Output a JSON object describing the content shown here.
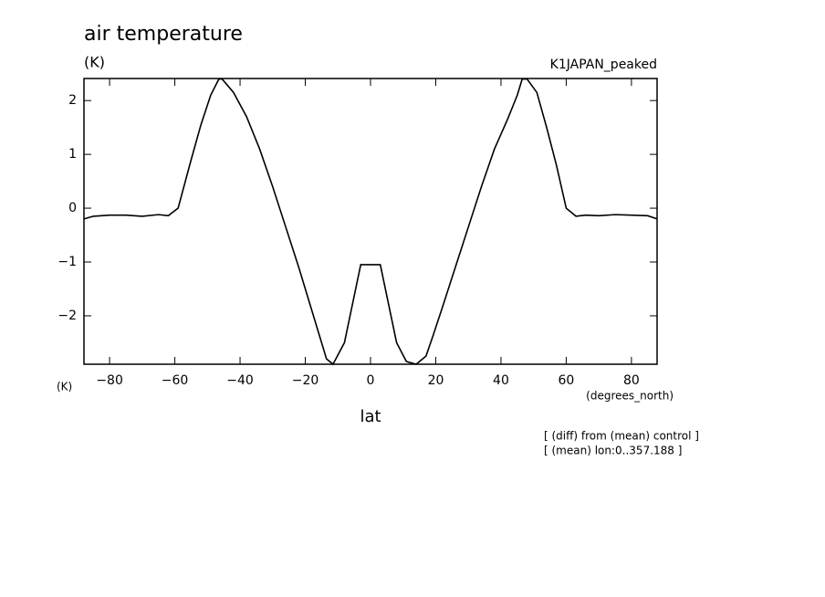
{
  "chart_data": {
    "type": "line",
    "title": "air temperature",
    "units_top": "(K)",
    "subtitle": "K1JAPAN_peaked",
    "ylabel": "(K)",
    "xunits": "(degrees_north)",
    "xlabel": "lat",
    "notes": [
      "[ (diff) from (mean) control ]",
      "[ (mean) lon:0..357.188 ]"
    ],
    "x": [
      -87.9,
      -85,
      -80,
      -75,
      -70,
      -65,
      -62,
      -59,
      -55,
      -52,
      -49,
      -46.5,
      -45.5,
      -42,
      -38,
      -34,
      -30,
      -26,
      -22,
      -19,
      -16,
      -13.5,
      -11.5,
      -8,
      -3,
      0.5,
      3,
      8,
      11,
      14,
      17,
      19,
      22,
      26,
      30,
      34,
      38,
      42,
      45,
      46.5,
      48,
      51,
      54,
      57,
      60,
      63,
      66,
      70,
      75,
      80,
      85,
      87.9
    ],
    "series": [
      {
        "name": "K1JAPAN_peaked",
        "color": "#000000",
        "values": [
          -0.2,
          -0.15,
          -0.13,
          -0.13,
          -0.15,
          -0.12,
          -0.14,
          0,
          0.9,
          1.55,
          2.1,
          2.4,
          2.4,
          2.15,
          1.7,
          1.1,
          0.4,
          -0.35,
          -1.1,
          -1.7,
          -2.3,
          -2.8,
          -2.9,
          -2.5,
          -1.05,
          -1.05,
          -1.05,
          -2.5,
          -2.85,
          -2.9,
          -2.75,
          -2.4,
          -1.85,
          -1.1,
          -0.35,
          0.4,
          1.1,
          1.65,
          2.1,
          2.4,
          2.4,
          2.15,
          1.5,
          0.8,
          0,
          -0.15,
          -0.13,
          -0.14,
          -0.12,
          -0.13,
          -0.14,
          -0.2
        ]
      }
    ],
    "xlim": [
      -87.86,
      87.86
    ],
    "ylim": [
      -2.9,
      2.41
    ],
    "xticks": [
      {
        "value": -80,
        "label": "−80"
      },
      {
        "value": -60,
        "label": "−60"
      },
      {
        "value": -40,
        "label": "−40"
      },
      {
        "value": -20,
        "label": "−20"
      },
      0,
      20,
      40,
      60,
      80
    ],
    "yticks": [
      {
        "value": -2,
        "label": "−2"
      },
      {
        "value": -1,
        "label": "−1"
      },
      0,
      1,
      2
    ]
  }
}
